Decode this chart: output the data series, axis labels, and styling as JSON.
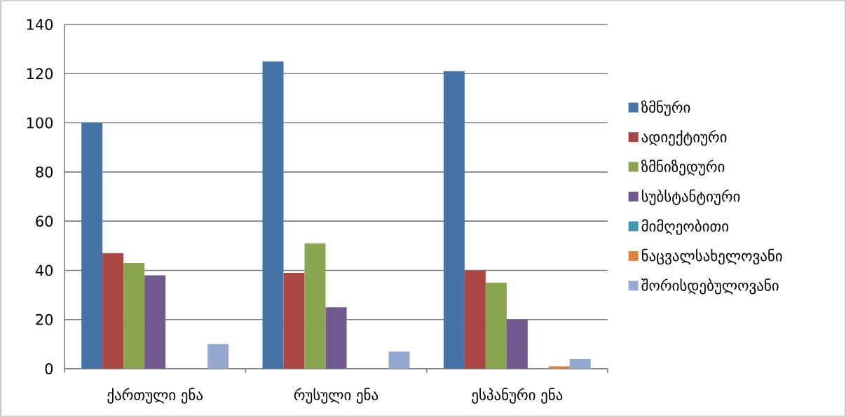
{
  "chart_data": {
    "type": "bar",
    "categories": [
      "ქართული ენა",
      "რუსული ენა",
      "ესპანური ენა"
    ],
    "series": [
      {
        "name": "ზმნური",
        "color": "#4572a7",
        "values": [
          100,
          125,
          121
        ]
      },
      {
        "name": "ადიექტიური",
        "color": "#aa4643",
        "values": [
          47,
          39,
          40
        ]
      },
      {
        "name": "ზმნიზედური",
        "color": "#89a54e",
        "values": [
          43,
          51,
          35
        ]
      },
      {
        "name": "სუბსტანტიური",
        "color": "#71588f",
        "values": [
          38,
          25,
          20
        ]
      },
      {
        "name": "მიმღეობითი",
        "color": "#4198af",
        "values": [
          0,
          0,
          0
        ]
      },
      {
        "name": "ნაცვალსახელოვანი",
        "color": "#db843d",
        "values": [
          0,
          0,
          1
        ]
      },
      {
        "name": "შორისდებულოვანი",
        "color": "#93a9cf",
        "values": [
          10,
          7,
          4
        ]
      }
    ],
    "ylim": [
      0,
      140
    ],
    "yticks": [
      0,
      20,
      40,
      60,
      80,
      100,
      120,
      140
    ],
    "grid": "y",
    "legend": "right"
  }
}
